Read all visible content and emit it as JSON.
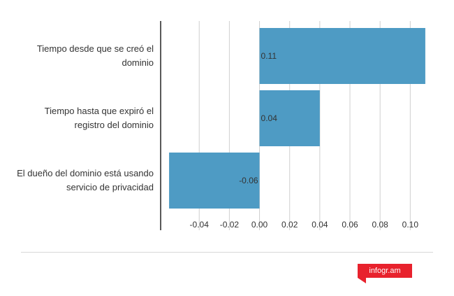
{
  "chart_data": {
    "type": "bar",
    "orientation": "horizontal",
    "categories": [
      "Tiempo desde que se creó el dominio",
      "Tiempo hasta que expiró el registro del dominio",
      "El dueño del dominio está usando servicio de privacidad"
    ],
    "category_lines": [
      [
        "Tiempo desde que se creó el",
        "dominio"
      ],
      [
        "Tiempo hasta que expiró el",
        "registro del dominio"
      ],
      [
        "El dueño del dominio está usando",
        "servicio de privacidad"
      ]
    ],
    "values": [
      0.11,
      0.04,
      -0.06
    ],
    "data_labels": [
      "0.11",
      "0.04",
      "-0.06"
    ],
    "xticks": [
      -0.04,
      -0.02,
      0.0,
      0.02,
      0.04,
      0.06,
      0.08,
      0.1
    ],
    "xtick_labels": [
      "-0.04",
      "-0.02",
      "0.00",
      "0.02",
      "0.04",
      "0.06",
      "0.08",
      "0.10"
    ],
    "xlim": [
      -0.0605,
      0.1105
    ],
    "grid": true,
    "bar_color": "#4e9bc4",
    "title": "",
    "xlabel": "",
    "ylabel": ""
  },
  "footer": {
    "logo_text": "infogr.am",
    "logo_color": "#e8222d"
  }
}
